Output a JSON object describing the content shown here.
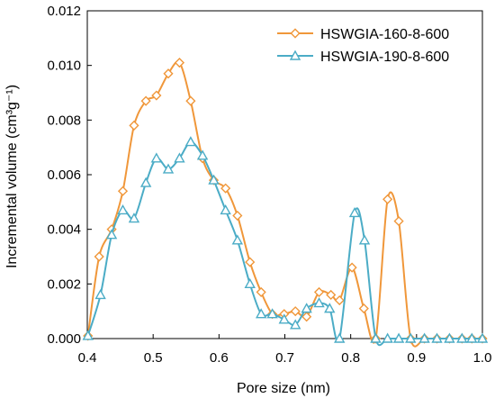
{
  "chart_data": {
    "type": "line",
    "title": "",
    "xlabel": "Pore size (nm)",
    "ylabel": "Incremental volume (cm³g⁻¹)",
    "xlim": [
      0.4,
      1.0
    ],
    "ylim": [
      0,
      0.012
    ],
    "xticks": [
      "0.4",
      "0.5",
      "0.6",
      "0.7",
      "0.8",
      "0.9",
      "1.0"
    ],
    "yticks": [
      "0.000",
      "0.002",
      "0.004",
      "0.006",
      "0.008",
      "0.010",
      "0.012"
    ],
    "grid": false,
    "legend_position": "top-right",
    "series": [
      {
        "name": "HSWGIA-160-8-600",
        "color": "#F0973A",
        "marker": "diamond",
        "points": [
          [
            0.401,
            0.0001
          ],
          [
            0.418,
            0.003
          ],
          [
            0.437,
            0.004
          ],
          [
            0.454,
            0.0054
          ],
          [
            0.471,
            0.0078
          ],
          [
            0.489,
            0.0087
          ],
          [
            0.505,
            0.0089
          ],
          [
            0.523,
            0.0097
          ],
          [
            0.54,
            0.0101
          ],
          [
            0.557,
            0.0087
          ],
          [
            0.575,
            0.0066
          ],
          [
            0.592,
            0.0058
          ],
          [
            0.61,
            0.0055
          ],
          [
            0.628,
            0.0045
          ],
          [
            0.647,
            0.0028
          ],
          [
            0.664,
            0.0017
          ],
          [
            0.681,
            0.0009
          ],
          [
            0.699,
            0.0009
          ],
          [
            0.716,
            0.001
          ],
          [
            0.733,
            0.0008
          ],
          [
            0.752,
            0.0017
          ],
          [
            0.77,
            0.0016
          ],
          [
            0.783,
            0.0014
          ],
          [
            0.802,
            0.0026
          ],
          [
            0.82,
            0.0011
          ],
          [
            0.838,
            0.0
          ],
          [
            0.856,
            0.0051
          ],
          [
            0.873,
            0.0043
          ],
          [
            0.891,
            0.0
          ],
          [
            0.912,
            0.0
          ],
          [
            0.931,
            0.0
          ],
          [
            0.95,
            0.0
          ],
          [
            0.969,
            0.0
          ],
          [
            0.984,
            0.0
          ],
          [
            1.0,
            0.0
          ]
        ]
      },
      {
        "name": "HSWGIA-190-8-600",
        "color": "#4BACC6",
        "marker": "triangle",
        "points": [
          [
            0.401,
            0.0001
          ],
          [
            0.42,
            0.0016
          ],
          [
            0.437,
            0.0038
          ],
          [
            0.454,
            0.0047
          ],
          [
            0.471,
            0.0044
          ],
          [
            0.489,
            0.0057
          ],
          [
            0.505,
            0.0066
          ],
          [
            0.523,
            0.0062
          ],
          [
            0.54,
            0.0066
          ],
          [
            0.557,
            0.0072
          ],
          [
            0.575,
            0.0067
          ],
          [
            0.592,
            0.0058
          ],
          [
            0.61,
            0.0047
          ],
          [
            0.628,
            0.0036
          ],
          [
            0.647,
            0.002
          ],
          [
            0.664,
            0.0009
          ],
          [
            0.681,
            0.0009
          ],
          [
            0.699,
            0.0007
          ],
          [
            0.716,
            0.0005
          ],
          [
            0.733,
            0.0011
          ],
          [
            0.752,
            0.0013
          ],
          [
            0.768,
            0.0011
          ],
          [
            0.783,
            0.0
          ],
          [
            0.806,
            0.0046
          ],
          [
            0.821,
            0.0036
          ],
          [
            0.838,
            0.0
          ],
          [
            0.856,
            0.0
          ],
          [
            0.873,
            0.0
          ],
          [
            0.891,
            0.0
          ],
          [
            0.912,
            0.0
          ],
          [
            0.931,
            0.0
          ],
          [
            0.95,
            0.0
          ],
          [
            0.969,
            0.0
          ],
          [
            0.984,
            0.0
          ],
          [
            1.0,
            0.0
          ]
        ]
      }
    ]
  }
}
